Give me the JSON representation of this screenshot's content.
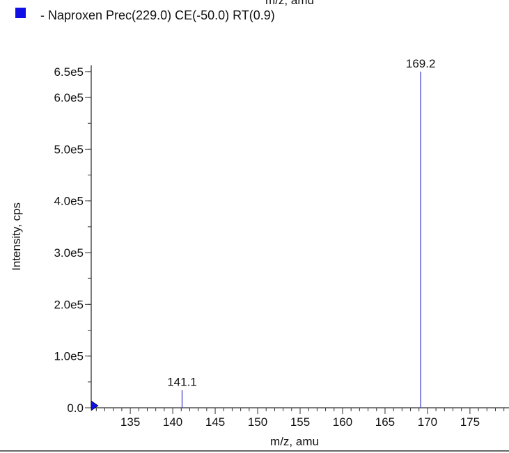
{
  "header": {
    "cut_text": "m/z, amu"
  },
  "legend": {
    "color": "#1010e6",
    "label": "- Naproxen Prec(229.0) CE(-50.0) RT(0.9)"
  },
  "chart_data": {
    "type": "bar",
    "title": "",
    "xlabel": "m/z, amu",
    "ylabel": "Intensity, cps",
    "xlim": [
      130.4,
      179.6
    ],
    "ylim": [
      0,
      662000
    ],
    "x_ticks": [
      135,
      140,
      145,
      150,
      155,
      160,
      165,
      170,
      175
    ],
    "x_tick_labels": [
      "135",
      "140",
      "145",
      "150",
      "155",
      "160",
      "165",
      "170",
      "175"
    ],
    "y_ticks": [
      0,
      100000,
      200000,
      300000,
      400000,
      500000,
      600000,
      650000
    ],
    "y_tick_labels": [
      "0.0",
      "1.0e5",
      "2.0e5",
      "3.0e5",
      "4.0e5",
      "5.0e5",
      "6.0e5",
      "6.5e5"
    ],
    "series": [
      {
        "name": "Naproxen Prec(229.0) CE(-50.0) RT(0.9)",
        "color": "#3333cc",
        "x": [
          141.1,
          169.2
        ],
        "values": [
          34000,
          650000
        ],
        "peak_labels": [
          "141.1",
          "169.2"
        ]
      }
    ],
    "grid": false,
    "legend_position": "top-left"
  }
}
